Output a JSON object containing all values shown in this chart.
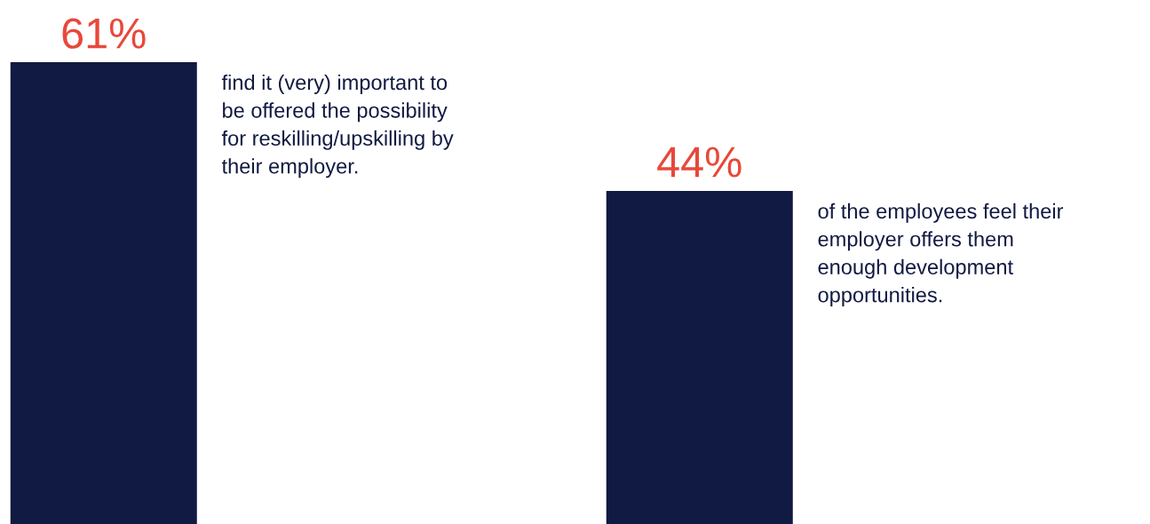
{
  "chart_data": {
    "type": "bar",
    "categories": [
      null,
      null
    ],
    "values": [
      61,
      44
    ],
    "value_labels": [
      "61%",
      "44%"
    ],
    "color": "#111a42",
    "annotations": [
      "find it (very) important to\nbe offered the possibility\nfor reskilling/upskilling by\ntheir employer.",
      "of the employees feel their\nemployer offers them\nenough development\nopportunities."
    ]
  }
}
